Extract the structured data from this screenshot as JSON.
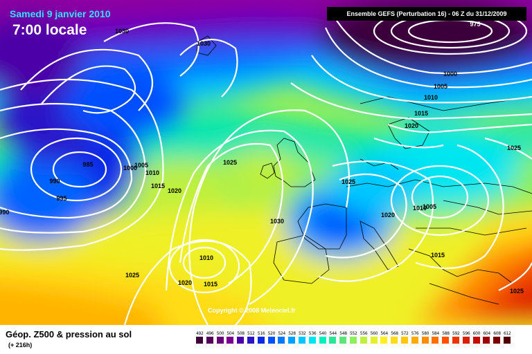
{
  "header": {
    "date": "Samedi 9 janvier 2010",
    "time": "7:00 locale",
    "run_info": "Ensemble GEFS (Perturbation 16) - 06 Z du 31/12/2009"
  },
  "copyright": "Copyright © 2008 Meteociel.fr",
  "footer": {
    "title": "Géop. Z500 & pression au sol",
    "subtitle": "(+ 216h)"
  },
  "legend": {
    "values": [
      "492",
      "496",
      "500",
      "504",
      "508",
      "512",
      "516",
      "520",
      "524",
      "528",
      "532",
      "536",
      "540",
      "544",
      "548",
      "552",
      "556",
      "560",
      "564",
      "568",
      "572",
      "576",
      "580",
      "584",
      "588",
      "592",
      "596",
      "600",
      "604",
      "608",
      "612"
    ],
    "colors": [
      "#3d003d",
      "#52005a",
      "#680078",
      "#7a0090",
      "#4b00a8",
      "#2a14c8",
      "#0a28e6",
      "#0050ff",
      "#0078ff",
      "#00a0ff",
      "#00c8ff",
      "#00e6f0",
      "#00f0c0",
      "#28e696",
      "#5ae678",
      "#8cf05a",
      "#bef03c",
      "#e6f028",
      "#fff01e",
      "#ffdc14",
      "#ffc80a",
      "#ffaa00",
      "#ff8c00",
      "#ff6e00",
      "#ff5000",
      "#f03200",
      "#dc1e00",
      "#c80a00",
      "#a00000",
      "#780000",
      "#500000"
    ]
  },
  "pressure_labels": [
    {
      "text": "1030",
      "id": "p1030-top"
    },
    {
      "text": "1030",
      "id": "p1030-greenland"
    },
    {
      "text": "975",
      "id": "p975"
    },
    {
      "text": "1000",
      "id": "p1000"
    },
    {
      "text": "1005",
      "id": "p1005-n"
    },
    {
      "text": "1010",
      "id": "p1010-n"
    },
    {
      "text": "1015",
      "id": "p1015-n"
    },
    {
      "text": "1020",
      "id": "p1020-scand"
    },
    {
      "text": "1025",
      "id": "p1025-e"
    },
    {
      "text": "985",
      "id": "p985"
    },
    {
      "text": "990",
      "id": "p990"
    },
    {
      "text": "995",
      "id": "p995"
    },
    {
      "text": "990",
      "id": "p990-edge"
    },
    {
      "text": "1000",
      "id": "p1000-w"
    },
    {
      "text": "1005",
      "id": "p1005-w"
    },
    {
      "text": "1010",
      "id": "p1010-w"
    },
    {
      "text": "1015",
      "id": "p1015-w"
    },
    {
      "text": "1020",
      "id": "p1020-w"
    },
    {
      "text": "1025",
      "id": "p1025-atl"
    },
    {
      "text": "1025",
      "id": "p1025-uk"
    },
    {
      "text": "1030",
      "id": "p1030-fr"
    },
    {
      "text": "1020",
      "id": "p1020-alps"
    },
    {
      "text": "1010",
      "id": "p1010-ce"
    },
    {
      "text": "1005",
      "id": "p1005-ce"
    },
    {
      "text": "1015",
      "id": "p1015-balk"
    },
    {
      "text": "1025",
      "id": "p1025-se"
    },
    {
      "text": "1010",
      "id": "p1010-az"
    },
    {
      "text": "1015",
      "id": "p1015-az"
    },
    {
      "text": "1020",
      "id": "p1020-az"
    },
    {
      "text": "1025",
      "id": "p1025-sw"
    }
  ]
}
